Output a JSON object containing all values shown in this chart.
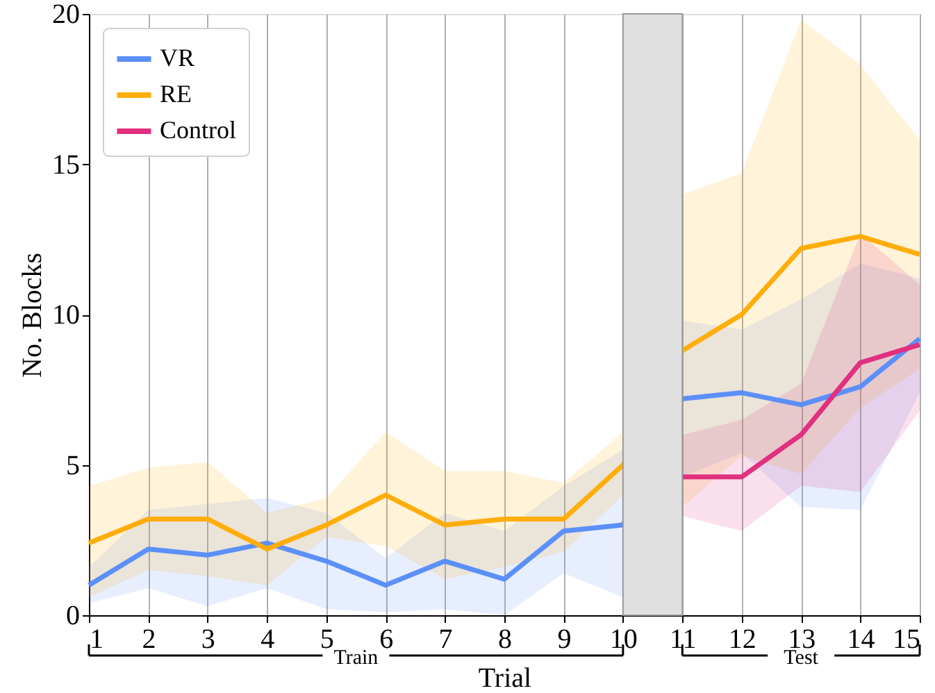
{
  "chart_data": {
    "type": "line",
    "xlabel": "Trial",
    "ylabel": "No. Blocks",
    "x": [
      1,
      2,
      3,
      4,
      5,
      6,
      7,
      8,
      9,
      10,
      11,
      12,
      13,
      14,
      15
    ],
    "series": [
      {
        "name": "VR",
        "color": "#5b8ff9",
        "values": [
          1.0,
          2.2,
          2.0,
          2.4,
          1.8,
          1.0,
          1.8,
          1.2,
          2.8,
          3.0,
          7.2,
          7.4,
          7.0,
          7.6,
          9.2
        ],
        "lower": [
          0.4,
          0.9,
          0.3,
          0.9,
          0.2,
          0.1,
          0.2,
          0.0,
          1.4,
          0.6,
          4.6,
          5.4,
          3.6,
          3.5,
          7.4
        ],
        "upper": [
          1.6,
          3.5,
          3.7,
          3.9,
          3.4,
          1.9,
          3.4,
          2.8,
          4.3,
          5.5,
          9.8,
          9.5,
          10.5,
          11.7,
          11.2
        ]
      },
      {
        "name": "RE",
        "color": "#ffad0a",
        "values": [
          2.4,
          3.2,
          3.2,
          2.2,
          3.0,
          4.0,
          3.0,
          3.2,
          3.2,
          5.0,
          8.8,
          10.0,
          12.2,
          12.6,
          12.0
        ],
        "lower": [
          0.6,
          1.5,
          1.3,
          1.0,
          2.6,
          2.3,
          1.2,
          1.6,
          2.1,
          4.0,
          3.6,
          5.3,
          4.7,
          6.9,
          8.2
        ],
        "upper": [
          4.3,
          4.9,
          5.1,
          3.4,
          3.9,
          6.1,
          4.8,
          4.8,
          4.4,
          6.1,
          14.0,
          14.7,
          19.8,
          18.3,
          15.8
        ]
      },
      {
        "name": "Control",
        "color": "#e0307f",
        "x": [
          11,
          12,
          13,
          14,
          15
        ],
        "values": [
          4.6,
          4.6,
          6.0,
          8.4,
          9.0
        ],
        "lower": [
          3.3,
          2.8,
          4.3,
          4.1,
          6.8
        ],
        "upper": [
          6.0,
          6.5,
          7.7,
          12.7,
          11.0
        ]
      }
    ],
    "bands": [
      {
        "axis": "x",
        "from": 10,
        "to": 11,
        "color": "#e0e0e0"
      }
    ],
    "annotations": [
      "Train",
      "Test"
    ],
    "xlim": [
      1,
      15
    ],
    "xticks": [
      1,
      2,
      3,
      4,
      5,
      6,
      7,
      8,
      9,
      10,
      11,
      12,
      13,
      14,
      15
    ],
    "ylim": [
      0,
      20
    ],
    "yticks": [
      0,
      5,
      10,
      15,
      20
    ],
    "grid": "x",
    "legend": "top left",
    "line_style": "solid",
    "marker": "none"
  }
}
